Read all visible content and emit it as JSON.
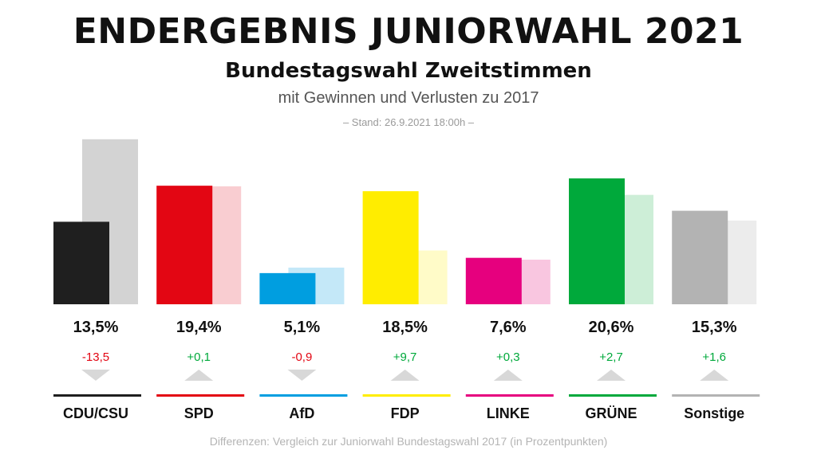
{
  "header": {
    "title": "ENDERGEBNIS JUNIORWAHL 2021",
    "subtitle": "Bundestagswahl Zweitstimmen",
    "subtitle2": "mit Gewinnen und Verlusten zu 2017",
    "stand": "– Stand: 26.9.2021 18:00h –"
  },
  "footer": "Differenzen: Vergleich zur Juniorwahl Bundestagswahl 2017 (in Prozentpunkten)",
  "chart_data": {
    "type": "bar",
    "categories": [
      "CDU/CSU",
      "SPD",
      "AfD",
      "FDP",
      "LINKE",
      "GRÜNE",
      "Sonstige"
    ],
    "series": [
      {
        "values": [
          13.5,
          19.4,
          5.1,
          18.5,
          7.6,
          20.6,
          15.3
        ]
      },
      {
        "values": [
          27.0,
          19.3,
          6.0,
          8.8,
          7.3,
          17.9,
          13.7
        ]
      }
    ],
    "value_labels": [
      "13,5%",
      "19,4%",
      "5,1%",
      "18,5%",
      "7,6%",
      "20,6%",
      "15,3%"
    ],
    "diff_labels": [
      "-13,5",
      "+0,1",
      "-0,9",
      "+9,7",
      "+0,3",
      "+2,7",
      "+1,6"
    ],
    "diff_direction": [
      "down",
      "up",
      "down",
      "up",
      "up",
      "up",
      "up"
    ],
    "colors": [
      "#1f1f1f",
      "#e30613",
      "#009ee0",
      "#ffed00",
      "#e6007e",
      "#00a93b",
      "#b3b3b3"
    ],
    "light_colors": [
      "#d3d3d3",
      "#f9cdd1",
      "#c4e8f8",
      "#fffbc8",
      "#f9c6e0",
      "#cdeed7",
      "#ececec"
    ],
    "gain_color": "#00a93b",
    "loss_color": "#e30613",
    "ylim": [
      0,
      27.5
    ]
  }
}
